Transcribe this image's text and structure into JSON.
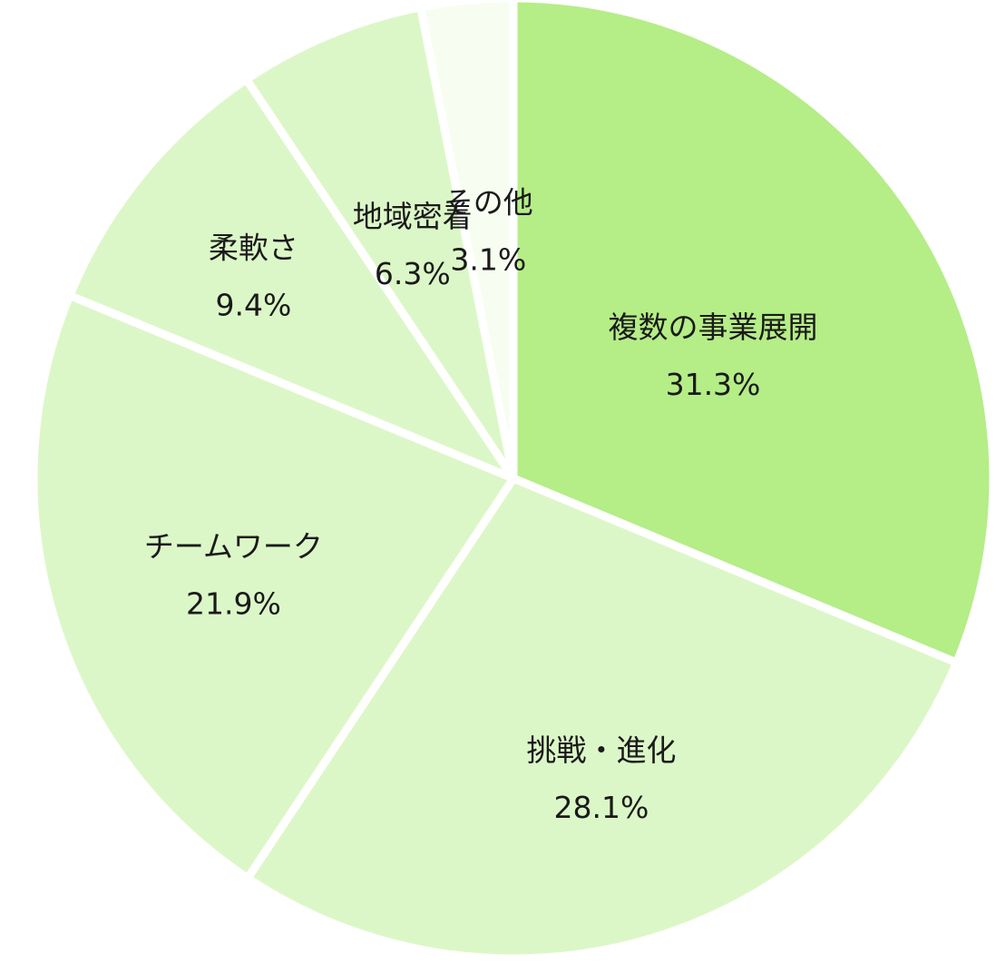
{
  "chart_data": {
    "type": "pie",
    "start_angle_deg": 0,
    "direction": "clockwise",
    "slices": [
      {
        "label": "複数の事業展開",
        "value": 31.3,
        "display": "31.3%",
        "color": "#b5ed87"
      },
      {
        "label": "挑戦・進化",
        "value": 28.1,
        "display": "28.1%",
        "color": "#dcf7c7"
      },
      {
        "label": "チームワーク",
        "value": 21.9,
        "display": "21.9%",
        "color": "#dcf7c7"
      },
      {
        "label": "柔軟さ",
        "value": 9.4,
        "display": "9.4%",
        "color": "#dcf7c7"
      },
      {
        "label": "地域密着",
        "value": 6.3,
        "display": "6.3%",
        "color": "#dcf7c7"
      },
      {
        "label": "その他",
        "value": 3.1,
        "display": "3.1%",
        "color": "#f7fdf0"
      }
    ]
  }
}
